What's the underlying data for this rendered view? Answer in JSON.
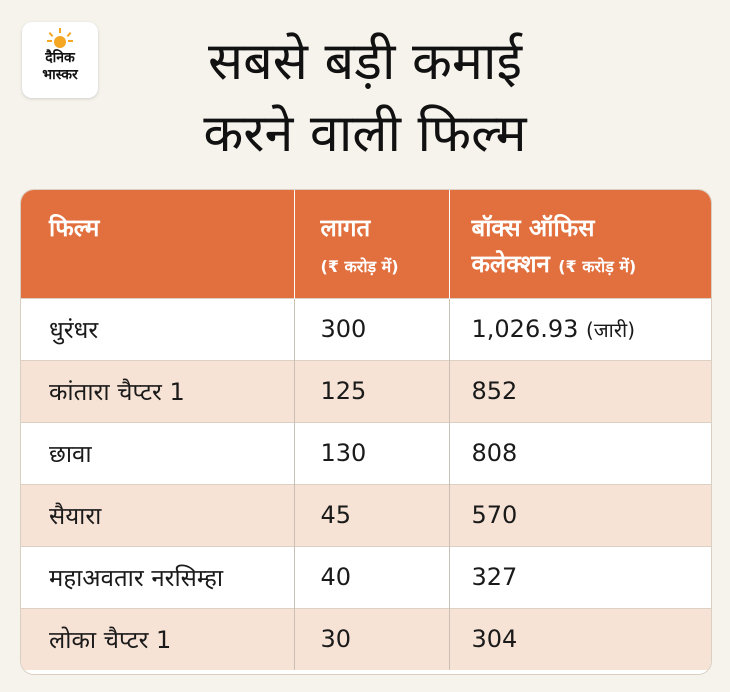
{
  "brand": {
    "line1": "दैनिक",
    "line2": "भास्कर",
    "sun_color": "#f5a623"
  },
  "title": {
    "line1": "सबसे बड़ी कमाई",
    "line2": "करने वाली फिल्म"
  },
  "colors": {
    "header_bg": "#e2703f",
    "stripe_bg": "#f7e3d6",
    "page_bg": "#f6f2ec"
  },
  "table": {
    "headers": {
      "film": "फिल्म",
      "cost": "लागत",
      "cost_unit": "(₹ करोड़ में)",
      "collection": "बॉक्स ऑफिस",
      "collection_line2": "कलेक्शन",
      "collection_unit": "(₹ करोड़ में)"
    },
    "rows": [
      {
        "film": "धुरंधर",
        "cost": "300",
        "collection": "1,026.93",
        "note": "(जारी)"
      },
      {
        "film": "कांतारा चैप्टर 1",
        "cost": "125",
        "collection": "852",
        "note": ""
      },
      {
        "film": "छावा",
        "cost": "130",
        "collection": "808",
        "note": ""
      },
      {
        "film": "सैयारा",
        "cost": "45",
        "collection": "570",
        "note": ""
      },
      {
        "film": "महाअवतार नरसिम्हा",
        "cost": "40",
        "collection": "327",
        "note": ""
      },
      {
        "film": "लोका चैप्टर 1",
        "cost": "30",
        "collection": "304",
        "note": ""
      }
    ]
  }
}
